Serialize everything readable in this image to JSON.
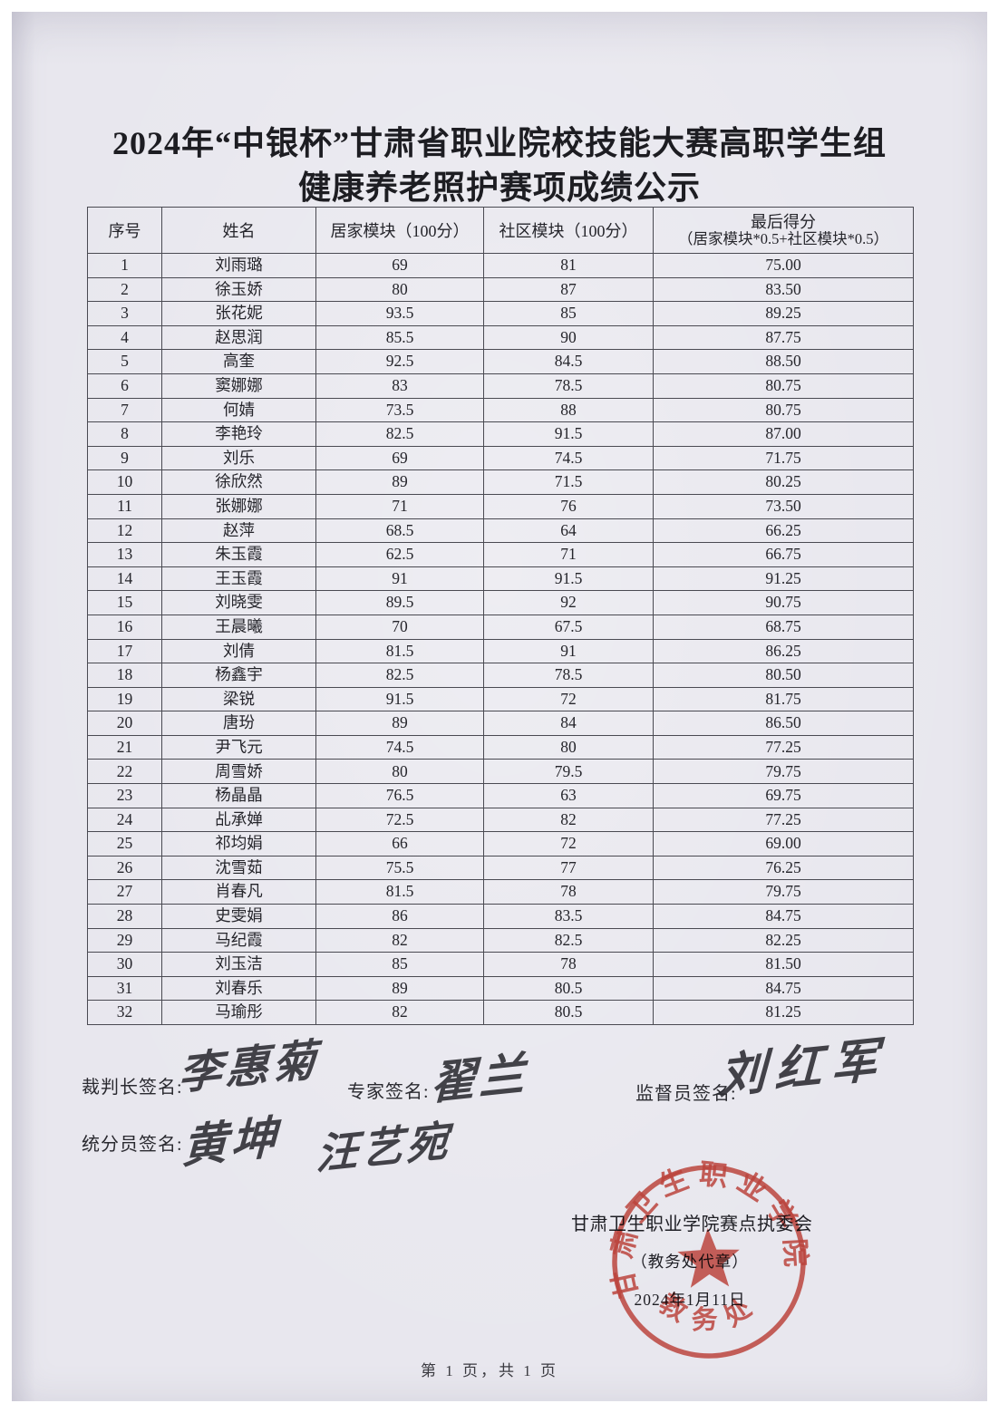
{
  "page": {
    "title_line1": "2024年“中银杯”甘肃省职业院校技能大赛高职学生组",
    "title_line2": "健康养老照护赛项成绩公示",
    "footer": "第 1 页，共 1 页"
  },
  "table": {
    "headers": {
      "no": "序号",
      "name": "姓名",
      "home": "居家模块（100分）",
      "community": "社区模块（100分）",
      "final_line1": "最后得分",
      "final_line2": "（居家模块*0.5+社区模块*0.5）"
    },
    "rows": [
      {
        "no": "1",
        "name": "刘雨璐",
        "home": "69",
        "community": "81",
        "final": "75.00"
      },
      {
        "no": "2",
        "name": "徐玉娇",
        "home": "80",
        "community": "87",
        "final": "83.50"
      },
      {
        "no": "3",
        "name": "张花妮",
        "home": "93.5",
        "community": "85",
        "final": "89.25"
      },
      {
        "no": "4",
        "name": "赵思润",
        "home": "85.5",
        "community": "90",
        "final": "87.75"
      },
      {
        "no": "5",
        "name": "高奎",
        "home": "92.5",
        "community": "84.5",
        "final": "88.50"
      },
      {
        "no": "6",
        "name": "窦娜娜",
        "home": "83",
        "community": "78.5",
        "final": "80.75"
      },
      {
        "no": "7",
        "name": "何婧",
        "home": "73.5",
        "community": "88",
        "final": "80.75"
      },
      {
        "no": "8",
        "name": "李艳玲",
        "home": "82.5",
        "community": "91.5",
        "final": "87.00"
      },
      {
        "no": "9",
        "name": "刘乐",
        "home": "69",
        "community": "74.5",
        "final": "71.75"
      },
      {
        "no": "10",
        "name": "徐欣然",
        "home": "89",
        "community": "71.5",
        "final": "80.25"
      },
      {
        "no": "11",
        "name": "张娜娜",
        "home": "71",
        "community": "76",
        "final": "73.50"
      },
      {
        "no": "12",
        "name": "赵萍",
        "home": "68.5",
        "community": "64",
        "final": "66.25"
      },
      {
        "no": "13",
        "name": "朱玉霞",
        "home": "62.5",
        "community": "71",
        "final": "66.75"
      },
      {
        "no": "14",
        "name": "王玉霞",
        "home": "91",
        "community": "91.5",
        "final": "91.25"
      },
      {
        "no": "15",
        "name": "刘晓雯",
        "home": "89.5",
        "community": "92",
        "final": "90.75"
      },
      {
        "no": "16",
        "name": "王晨曦",
        "home": "70",
        "community": "67.5",
        "final": "68.75"
      },
      {
        "no": "17",
        "name": "刘倩",
        "home": "81.5",
        "community": "91",
        "final": "86.25"
      },
      {
        "no": "18",
        "name": "杨鑫宇",
        "home": "82.5",
        "community": "78.5",
        "final": "80.50"
      },
      {
        "no": "19",
        "name": "梁锐",
        "home": "91.5",
        "community": "72",
        "final": "81.75"
      },
      {
        "no": "20",
        "name": "唐玢",
        "home": "89",
        "community": "84",
        "final": "86.50"
      },
      {
        "no": "21",
        "name": "尹飞元",
        "home": "74.5",
        "community": "80",
        "final": "77.25"
      },
      {
        "no": "22",
        "name": "周雪娇",
        "home": "80",
        "community": "79.5",
        "final": "79.75"
      },
      {
        "no": "23",
        "name": "杨晶晶",
        "home": "76.5",
        "community": "63",
        "final": "69.75"
      },
      {
        "no": "24",
        "name": "乩承婵",
        "home": "72.5",
        "community": "82",
        "final": "77.25"
      },
      {
        "no": "25",
        "name": "祁均娟",
        "home": "66",
        "community": "72",
        "final": "69.00"
      },
      {
        "no": "26",
        "name": "沈雪茹",
        "home": "75.5",
        "community": "77",
        "final": "76.25"
      },
      {
        "no": "27",
        "name": "肖春凡",
        "home": "81.5",
        "community": "78",
        "final": "79.75"
      },
      {
        "no": "28",
        "name": "史雯娟",
        "home": "86",
        "community": "83.5",
        "final": "84.75"
      },
      {
        "no": "29",
        "name": "马纪霞",
        "home": "82",
        "community": "82.5",
        "final": "82.25"
      },
      {
        "no": "30",
        "name": "刘玉洁",
        "home": "85",
        "community": "78",
        "final": "81.50"
      },
      {
        "no": "31",
        "name": "刘春乐",
        "home": "89",
        "community": "80.5",
        "final": "84.75"
      },
      {
        "no": "32",
        "name": "马瑜彤",
        "home": "82",
        "community": "80.5",
        "final": "81.25"
      }
    ]
  },
  "signatures": {
    "referee_label": "裁判长签名:",
    "referee_sign": "李惠菊",
    "expert_label": "专家签名:",
    "expert_sign": "翟兰",
    "supervisor_label": "监督员签名:",
    "supervisor_sign": "刘红军",
    "scorer_label": "统分员签名:",
    "scorer_sign1": "黄坤",
    "scorer_sign2": "汪艺宛"
  },
  "stamp_area": {
    "org_line": "甘肃卫生职业学院赛点执委会",
    "proxy_line": "（教务处代章）",
    "date_line": "2024年1月11日",
    "seal_ring_text": "甘肃卫生职业学院",
    "seal_bottom_text": "教务处",
    "seal_color": "#c8372c"
  }
}
